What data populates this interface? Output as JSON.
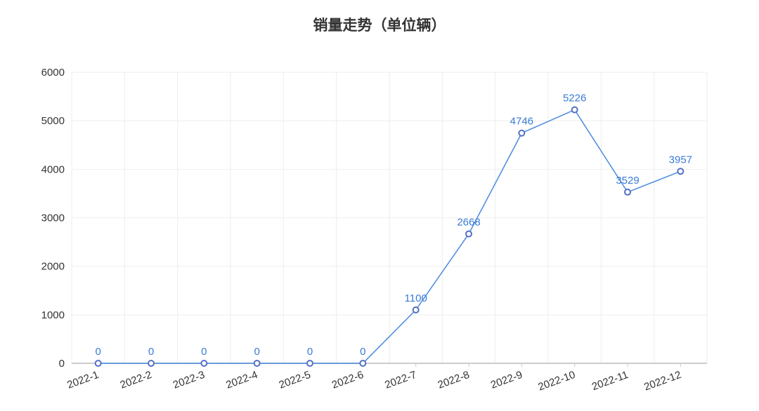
{
  "chart_data": {
    "type": "line",
    "title": "销量走势（单位辆）",
    "categories": [
      "2022-1",
      "2022-2",
      "2022-3",
      "2022-4",
      "2022-5",
      "2022-6",
      "2022-7",
      "2022-8",
      "2022-9",
      "2022-10",
      "2022-11",
      "2022-12"
    ],
    "values": [
      0,
      0,
      0,
      0,
      0,
      0,
      1100,
      2668,
      4746,
      5226,
      3529,
      3957
    ],
    "ylim": [
      0,
      6000
    ],
    "yticks": [
      0,
      1000,
      2000,
      3000,
      4000,
      5000,
      6000
    ],
    "grid": true,
    "data_labels": true,
    "colors": {
      "line": "#4a8ae0",
      "marker": "#5470c6",
      "label": "#3a7bd5",
      "grid": "#eeeeee",
      "axis": "#cccccc"
    }
  }
}
